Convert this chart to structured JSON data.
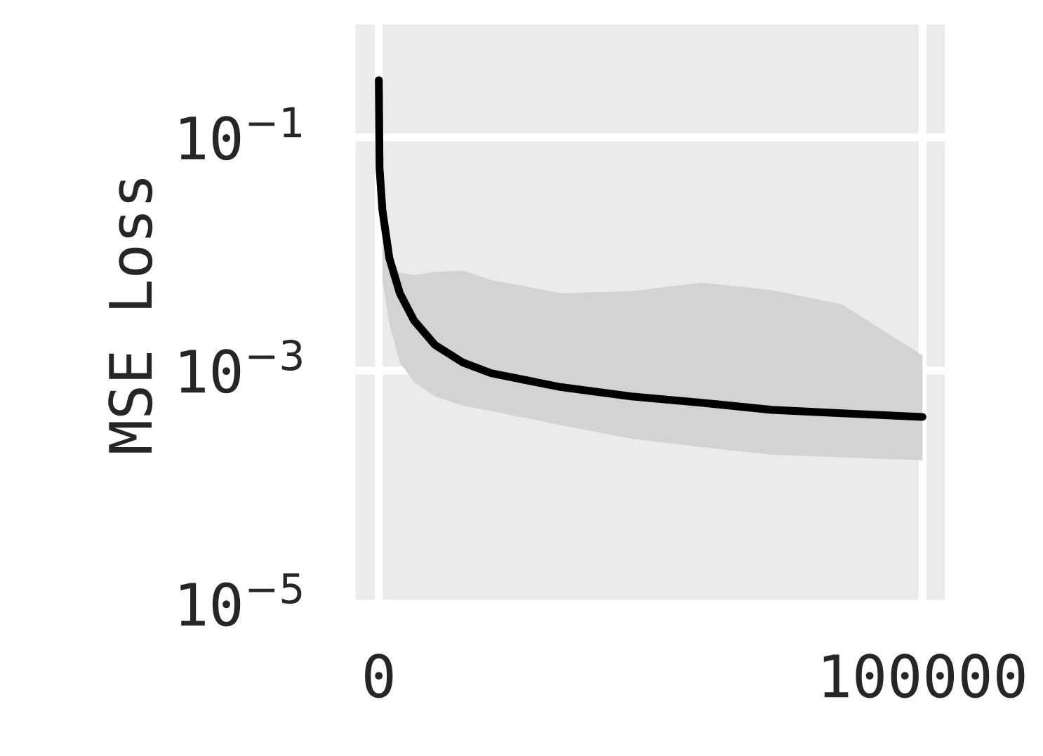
{
  "chart_data": {
    "type": "line",
    "ylabel": "MSE Loss",
    "log": "y",
    "grid": true,
    "legend": false,
    "line_style": "solid",
    "xlim": [
      -4260,
      104130
    ],
    "ylim": [
      1e-05,
      0.93
    ],
    "xticks": [
      0,
      100000
    ],
    "yticks": [
      {
        "value": 0.1,
        "label": "10$^{−1}$"
      },
      {
        "value": 0.001,
        "label": "10$^{−3}$"
      },
      {
        "value": 1e-05,
        "label": "10$^{−5}$"
      }
    ],
    "series": [
      {
        "color": "#000000",
        "x": [
          0,
          130,
          650,
          1940,
          3870,
          6450,
          10320,
          15480,
          20650,
          33550,
          46450,
          59350,
          72260,
          85160,
          100000
        ],
        "values": [
          0.31,
          0.055,
          0.024,
          0.0092,
          0.0046,
          0.0027,
          0.00166,
          0.00117,
          0.00095,
          0.00072,
          0.0006,
          0.00053,
          0.00046,
          0.00043,
          0.0004
        ],
        "lower": [
          null,
          null,
          0.006,
          0.0025,
          0.00117,
          0.0008,
          0.0006,
          0.0005,
          0.00045,
          0.00034,
          0.00026,
          0.00022,
          0.00019,
          0.00018,
          0.00017
        ],
        "upper": [
          null,
          null,
          0.0121,
          0.009,
          0.0069,
          0.0066,
          0.007,
          0.0072,
          0.006,
          0.0046,
          0.0048,
          0.0057,
          0.0049,
          0.0037,
          0.00135
        ]
      }
    ]
  }
}
